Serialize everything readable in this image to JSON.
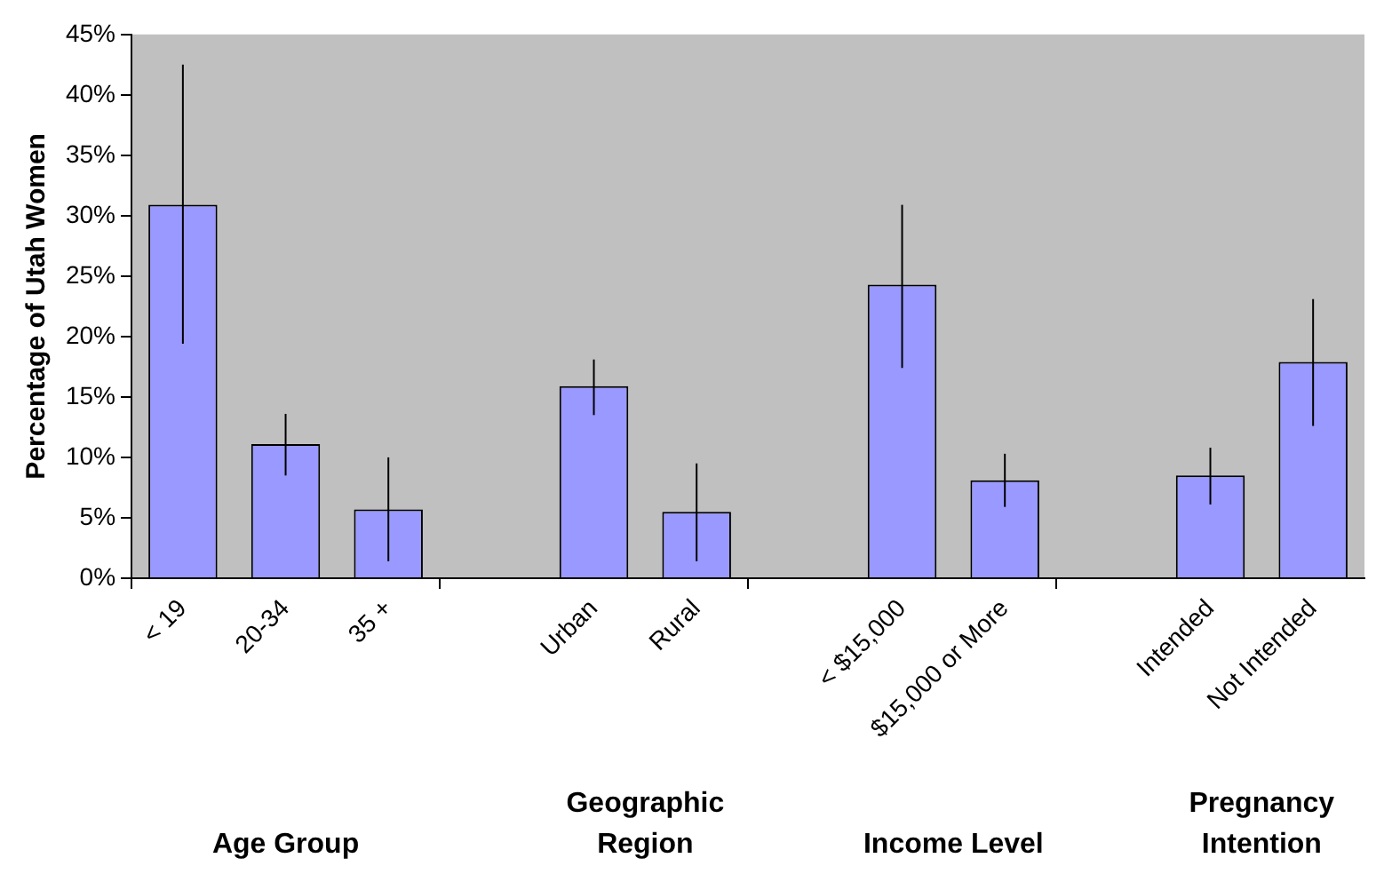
{
  "chart_data": {
    "type": "bar",
    "ylabel": "Percentage of Utah Women",
    "categories": [
      "< 19",
      "20-34",
      "35 +",
      null,
      "Urban",
      "Rural",
      null,
      "< $15,000",
      "$15,000 or More",
      null,
      "Intended",
      "Not Intended"
    ],
    "values": [
      30.9,
      11.1,
      5.7,
      null,
      15.9,
      5.5,
      null,
      24.3,
      8.1,
      null,
      8.5,
      17.9
    ],
    "errors": [
      [
        19.4,
        42.5
      ],
      [
        8.5,
        13.6
      ],
      [
        1.4,
        10.0
      ],
      null,
      [
        13.5,
        18.1
      ],
      [
        1.4,
        9.5
      ],
      null,
      [
        17.4,
        30.9
      ],
      [
        5.9,
        10.3
      ],
      null,
      [
        6.1,
        10.8
      ],
      [
        12.6,
        23.1
      ]
    ],
    "color": "#9999ff",
    "ylim": [
      0,
      45
    ],
    "yticks": [
      {
        "value": 0,
        "label": "0%"
      },
      {
        "value": 5,
        "label": "5%"
      },
      {
        "value": 10,
        "label": "10%"
      },
      {
        "value": 15,
        "label": "15%"
      },
      {
        "value": 20,
        "label": "20%"
      },
      {
        "value": 25,
        "label": "25%"
      },
      {
        "value": 30,
        "label": "30%"
      },
      {
        "value": 35,
        "label": "35%"
      },
      {
        "value": 40,
        "label": "40%"
      },
      {
        "value": 45,
        "label": "45%"
      }
    ],
    "annotations": [
      "Age Group",
      "Geographic Region",
      "Income Level",
      "Pregnancy Intention"
    ],
    "grid": false,
    "legend": false
  }
}
